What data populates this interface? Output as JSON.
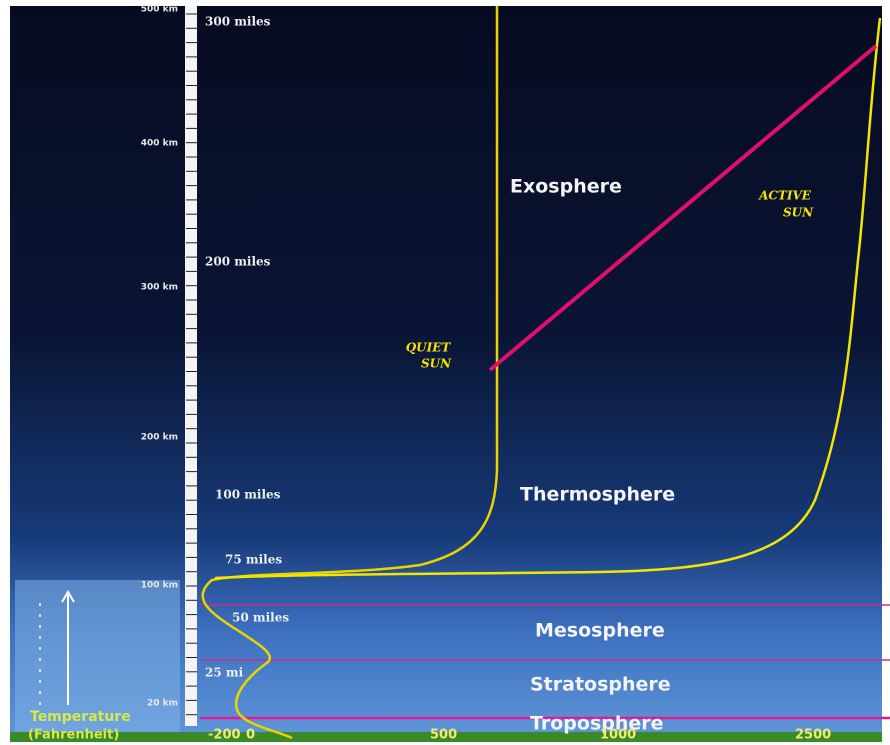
{
  "altitude": {
    "km": [
      "500 km",
      "400 km",
      "300 km",
      "200 km",
      "100 km",
      "20 km"
    ],
    "miles": [
      "300 miles",
      "200 miles",
      "100 miles",
      "75 miles",
      "50 miles",
      "25 mi"
    ]
  },
  "layers": [
    "Exosphere",
    "Thermosphere",
    "Mesosphere",
    "Stratosphere",
    "Troposphere"
  ],
  "annotations": {
    "quiet_sun": [
      "QUIET",
      "SUN"
    ],
    "active_sun": [
      "ACTIVE",
      "SUN"
    ]
  },
  "temperature": {
    "title": "Temperature",
    "unit": "(Fahrenheit)",
    "ticks": [
      "-200",
      "0",
      "500",
      "1000",
      "2500"
    ]
  }
}
